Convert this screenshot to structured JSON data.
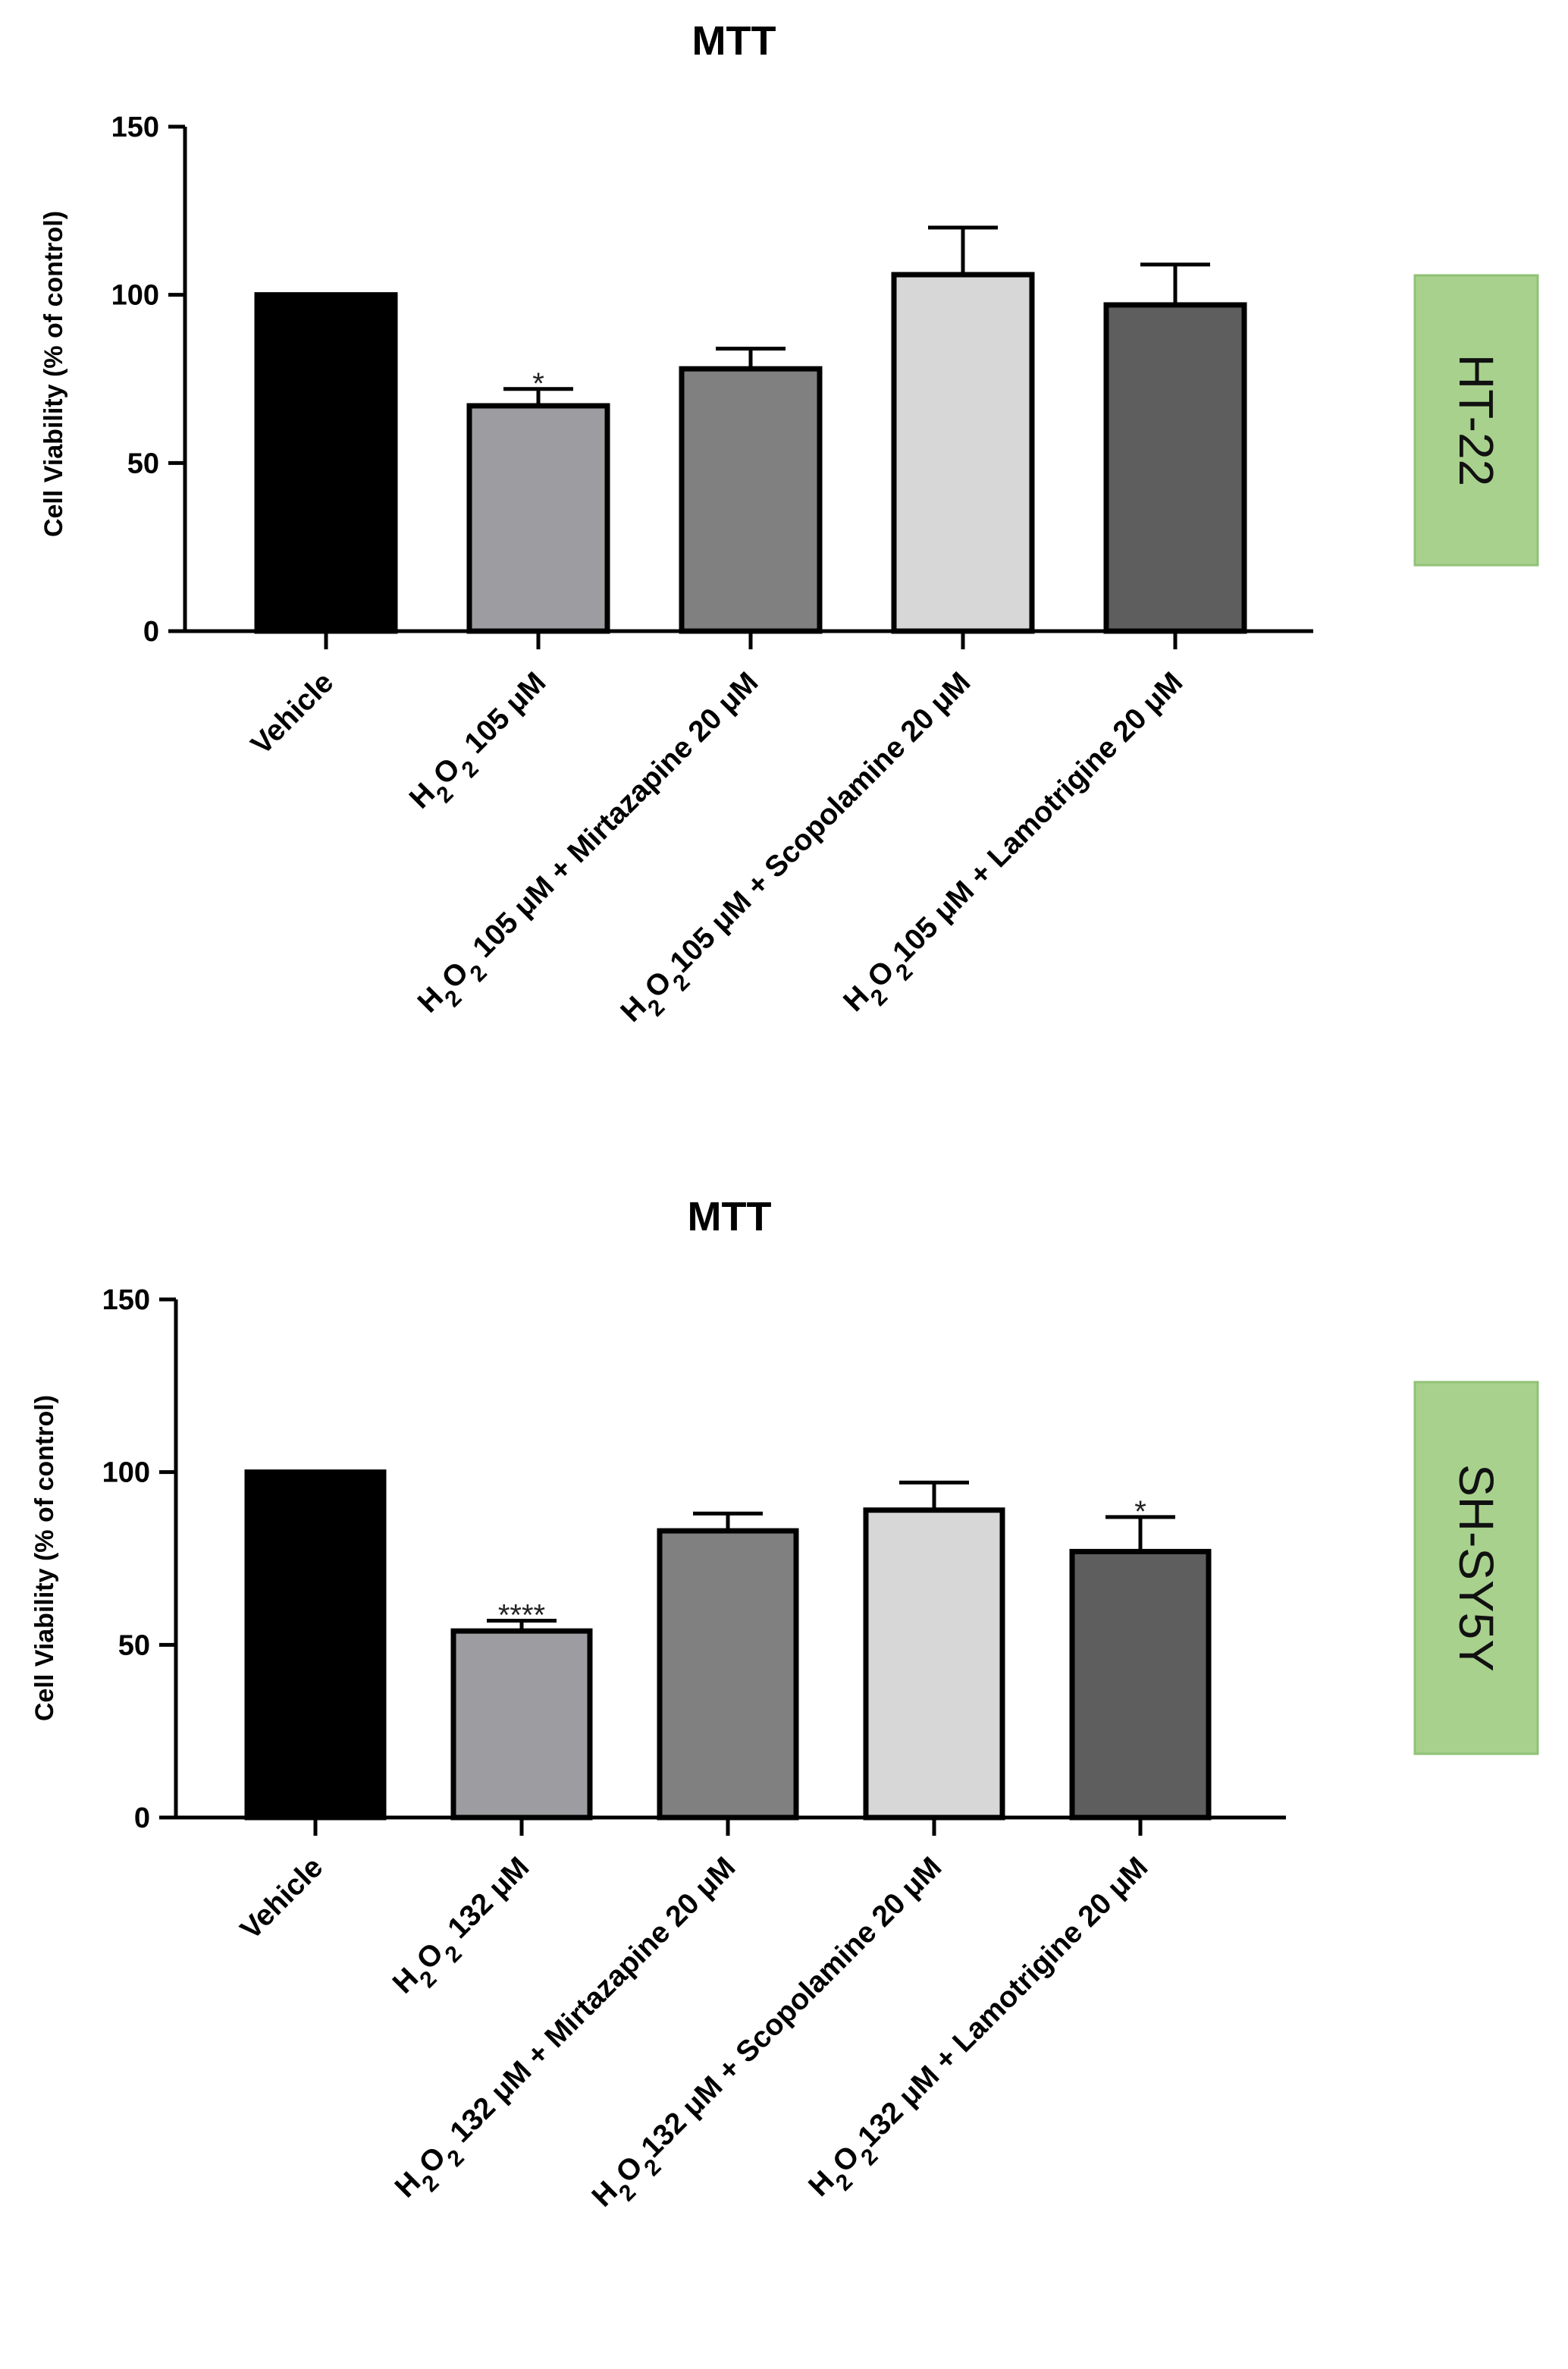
{
  "chart_data": [
    {
      "type": "bar",
      "title": "MTT",
      "ylabel": "Cell Viability (% of control)",
      "xlabel": "",
      "ylim": [
        0,
        150
      ],
      "yticks": [
        0,
        50,
        100,
        150
      ],
      "cell_line": "HT-22",
      "categories": [
        "Vehicle",
        "H2O2 105 μM",
        "H2O2 105 μM + Mirtazapine 20 μM",
        "H2O2105 μM + Scopolamine 20 μM",
        "H2O2105 μM + Lamotrigine 20 μM"
      ],
      "values": [
        100,
        67,
        78,
        106,
        97
      ],
      "errors": [
        0,
        5,
        6,
        14,
        12
      ],
      "significance": [
        "",
        "*",
        "",
        "",
        ""
      ],
      "colors": [
        "#000000",
        "#9d9da1",
        "#808080",
        "#d7d7d7",
        "#5e5e5e"
      ]
    },
    {
      "type": "bar",
      "title": "MTT",
      "ylabel": "Cell Viability (% of control)",
      "xlabel": "",
      "ylim": [
        0,
        150
      ],
      "yticks": [
        0,
        50,
        100,
        150
      ],
      "cell_line": "SH-SY5Y",
      "categories": [
        "Vehicle",
        "H2O2 132 μM",
        "H2O2 132 μM + Mirtazapine 20 μM",
        "H2O2132 μM + Scopolamine 20 μM",
        "H2O2132 μM + Lamotrigine 20 μM"
      ],
      "values": [
        100,
        54,
        83,
        89,
        77
      ],
      "errors": [
        0,
        3,
        5,
        8,
        10
      ],
      "significance": [
        "",
        "****",
        "",
        "",
        "*"
      ],
      "colors": [
        "#000000",
        "#9d9da1",
        "#808080",
        "#d7d7d7",
        "#5e5e5e"
      ]
    }
  ],
  "colors": {
    "label_box_fill": "#a9d18e",
    "label_box_border": "#8fc276"
  }
}
